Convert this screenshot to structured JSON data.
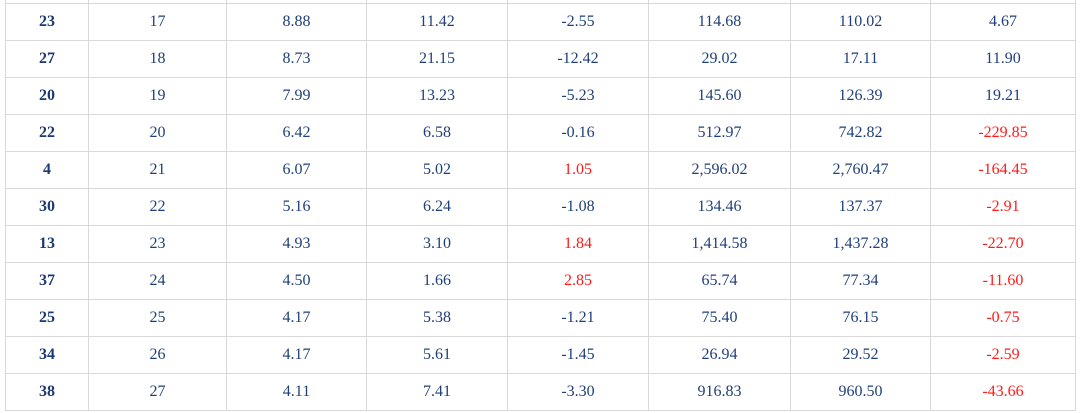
{
  "table": {
    "rows": [
      [
        "23",
        "17",
        "8.88",
        "11.42",
        "-2.55",
        "114.68",
        "110.02",
        "4.67"
      ],
      [
        "27",
        "18",
        "8.73",
        "21.15",
        "-12.42",
        "29.02",
        "17.11",
        "11.90"
      ],
      [
        "20",
        "19",
        "7.99",
        "13.23",
        "-5.23",
        "145.60",
        "126.39",
        "19.21"
      ],
      [
        "22",
        "20",
        "6.42",
        "6.58",
        "-0.16",
        "512.97",
        "742.82",
        "-229.85"
      ],
      [
        "4",
        "21",
        "6.07",
        "5.02",
        "1.05",
        "2,596.02",
        "2,760.47",
        "-164.45"
      ],
      [
        "30",
        "22",
        "5.16",
        "6.24",
        "-1.08",
        "134.46",
        "137.37",
        "-2.91"
      ],
      [
        "13",
        "23",
        "4.93",
        "3.10",
        "1.84",
        "1,414.58",
        "1,437.28",
        "-22.70"
      ],
      [
        "37",
        "24",
        "4.50",
        "1.66",
        "2.85",
        "65.74",
        "77.34",
        "-11.60"
      ],
      [
        "25",
        "25",
        "4.17",
        "5.38",
        "-1.21",
        "75.40",
        "76.15",
        "-0.75"
      ],
      [
        "34",
        "26",
        "4.17",
        "5.61",
        "-1.45",
        "26.94",
        "29.52",
        "-2.59"
      ],
      [
        "38",
        "27",
        "4.11",
        "7.41",
        "-3.30",
        "916.83",
        "960.50",
        "-43.66"
      ]
    ]
  }
}
